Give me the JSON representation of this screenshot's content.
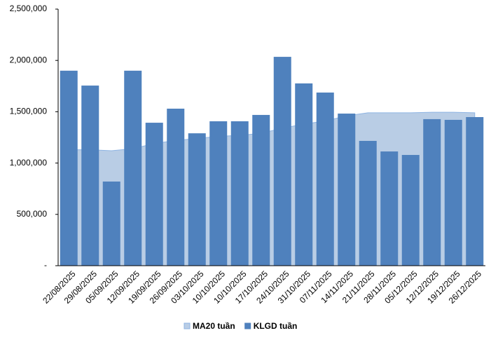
{
  "chart_data": {
    "type": "bar_area",
    "categories": [
      "22/08/2025",
      "29/08/2025",
      "05/09/2025",
      "12/09/2025",
      "19/09/2025",
      "26/09/2025",
      "03/10/2025",
      "10/10/2025",
      "10/10/2025",
      "17/10/2025",
      "24/10/2025",
      "31/10/2025",
      "07/11/2025",
      "14/11/2025",
      "21/11/2025",
      "28/11/2025",
      "05/12/2025",
      "12/12/2025",
      "19/12/2025",
      "26/12/2025"
    ],
    "series": [
      {
        "name": "MA20 tuần",
        "type": "area",
        "color": "#b9cde5",
        "stroke": "#8eb4e3",
        "values": [
          1130000,
          1130000,
          1120000,
          1140000,
          1190000,
          1220000,
          1240000,
          1260000,
          1270000,
          1290000,
          1340000,
          1380000,
          1410000,
          1460000,
          1490000,
          1490000,
          1490000,
          1495000,
          1495000,
          1490000
        ]
      },
      {
        "name": "KLGD tuần",
        "type": "bar",
        "color": "#4f81bd",
        "values": [
          1900000,
          1755000,
          820000,
          1900000,
          1393000,
          1530000,
          1290000,
          1407000,
          1407000,
          1469000,
          2035000,
          1776000,
          1687000,
          1482000,
          1216000,
          1113000,
          1079000,
          1428000,
          1421000,
          1448000
        ]
      }
    ],
    "ylim": [
      0,
      2500000
    ],
    "yticks": [
      {
        "value": 0,
        "label": "-"
      },
      {
        "value": 500000,
        "label": "500,000"
      },
      {
        "value": 1000000,
        "label": "1,000,000"
      },
      {
        "value": 1500000,
        "label": "1,500,000"
      },
      {
        "value": 2000000,
        "label": "2,000,000"
      },
      {
        "value": 2500000,
        "label": "2,500,000"
      }
    ],
    "legend": "bottom"
  }
}
